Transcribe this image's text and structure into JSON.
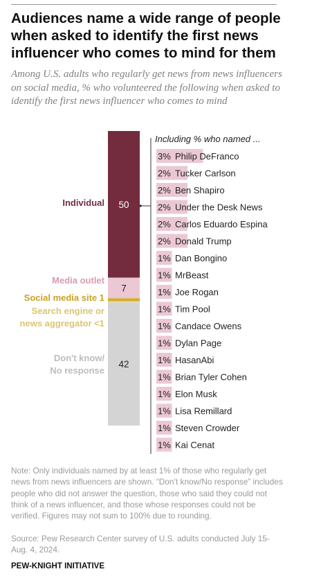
{
  "title": "Audiences name a wide range of people when asked to identify the first news influencer who comes to mind for them",
  "subtitle": "Among U.S. adults who regularly get news from news influencers on social media, % who volunteered the following when asked to identify the first news influencer who comes to mind",
  "chart_data": {
    "type": "bar",
    "subtype": "stacked-single-bar-with-breakout-list",
    "stacked": {
      "categories": [
        "Individual",
        "Media outlet",
        "Social media site",
        "Search engine or news aggregator",
        "Don't know/ No response"
      ],
      "values": [
        50,
        7,
        1,
        0.4,
        42
      ],
      "value_labels": [
        "50",
        "7",
        "1",
        "<1",
        "42"
      ],
      "label_lines": [
        [
          "Individual"
        ],
        [
          "Media outlet"
        ],
        [
          "Social media site"
        ],
        [
          "Search engine or",
          "news aggregator"
        ],
        [
          "Don't know/",
          "No response"
        ]
      ],
      "colors": [
        "#732c3e",
        "#ebc8d4",
        "#d4ad2d",
        "#ead897",
        "#d4d4d4"
      ],
      "label_colors": [
        "#732c3e",
        "#d69bb0",
        "#c9a226",
        "#dcc670",
        "#bdbdbd"
      ]
    },
    "breakout": {
      "header": "Including % who named ...",
      "bar_color": "#ebc8d4",
      "items": [
        {
          "name": "Philip DeFranco",
          "value": 3,
          "label": "3%"
        },
        {
          "name": "Tucker Carlson",
          "value": 2,
          "label": "2%"
        },
        {
          "name": "Ben Shapiro",
          "value": 2,
          "label": "2%"
        },
        {
          "name": "Under the Desk News",
          "value": 2,
          "label": "2%"
        },
        {
          "name": "Carlos Eduardo Espina",
          "value": 2,
          "label": "2%"
        },
        {
          "name": "Donald Trump",
          "value": 2,
          "label": "2%"
        },
        {
          "name": "Dan Bongino",
          "value": 1,
          "label": "1%"
        },
        {
          "name": "MrBeast",
          "value": 1,
          "label": "1%"
        },
        {
          "name": "Joe Rogan",
          "value": 1,
          "label": "1%"
        },
        {
          "name": "Tim Pool",
          "value": 1,
          "label": "1%"
        },
        {
          "name": "Candace Owens",
          "value": 1,
          "label": "1%"
        },
        {
          "name": "Dylan Page",
          "value": 1,
          "label": "1%"
        },
        {
          "name": "HasanAbi",
          "value": 1,
          "label": "1%"
        },
        {
          "name": "Brian Tyler Cohen",
          "value": 1,
          "label": "1%"
        },
        {
          "name": "Elon Musk",
          "value": 1,
          "label": "1%"
        },
        {
          "name": "Lisa Remillard",
          "value": 1,
          "label": "1%"
        },
        {
          "name": "Steven Crowder",
          "value": 1,
          "label": "1%"
        },
        {
          "name": "Kai Cenat",
          "value": 1,
          "label": "1%"
        }
      ]
    }
  },
  "note": "Note: Only individuals named by at least 1% of those who regularly get news from news influencers are shown. “Don’t know/No response” includes people who did not answer the question, those who said they could not think of a news influencer, and those whose responses could not be verified. Figures may not sum to 100% due to rounding.",
  "source": "Source: Pew Research Center survey of U.S. adults conducted July 15-Aug. 4, 2024.",
  "credit": "PEW-KNIGHT INITIATIVE"
}
